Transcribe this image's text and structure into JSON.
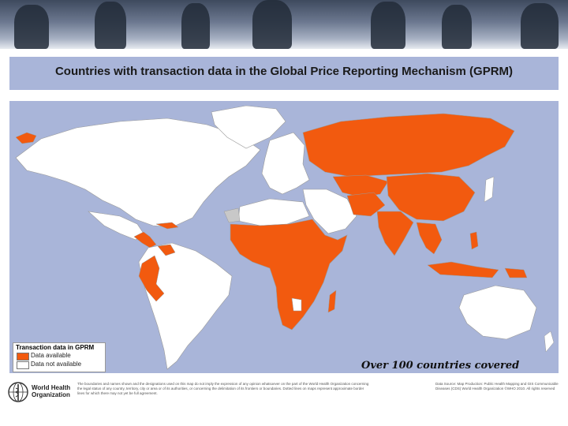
{
  "title": "Countries with transaction data in the Global Price Reporting Mechanism (GPRM)",
  "legend": {
    "title": "Transaction data in GPRM",
    "items": [
      {
        "label": "Data available",
        "color": "#f25a0f"
      },
      {
        "label": "Data not available",
        "color": "#ffffff"
      }
    ]
  },
  "coverage_note": "Over 100 countries covered",
  "colors": {
    "data_available": "#f25a0f",
    "no_data": "#ffffff",
    "not_applicable": "#c8c8c8",
    "ocean": "#a9b5d9",
    "borders": "#9a9a9a"
  },
  "footer": {
    "org_name": "World Health Organization",
    "disclaimer": "The boundaries and names shown and the designations used on this map do not imply the expression of any opinion whatsoever on the part of the World Health Organization concerning the legal status of any country, territory, city or area or of its authorities, or concerning the delimitation of its frontiers or boundaries. Dotted lines on maps represent approximate border lines for which there may not yet be full agreement.",
    "credits": "Data Source: Map Production: Public Health Mapping and GIS Communicable Diseases (CDS) World Health Organization ©WHO 2010. All rights reserved"
  }
}
